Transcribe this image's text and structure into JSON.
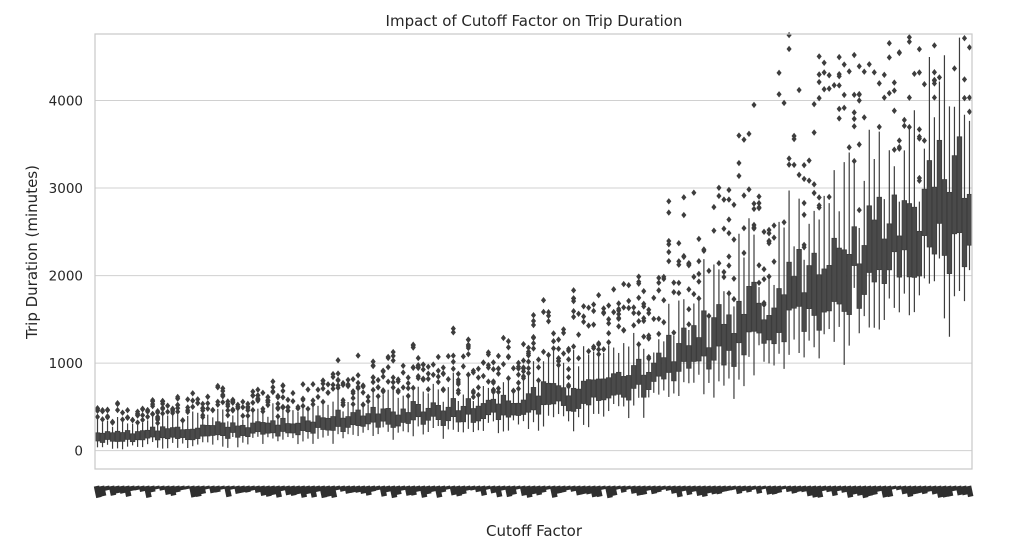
{
  "chart_data": {
    "type": "box",
    "title": "Impact of Cutoff Factor on Trip Duration",
    "xlabel": "Cutoff Factor",
    "ylabel": "Trip Duration (minutes)",
    "ylim": [
      -210,
      4760
    ],
    "yticks": [
      0,
      1000,
      2000,
      3000,
      4000
    ],
    "grid": true,
    "x_tick_labels_legible": false,
    "color": "#4a4a4a",
    "approx_trend": {
      "x_fraction": [
        0.0,
        0.2,
        0.4,
        0.6,
        0.8,
        1.0
      ],
      "median_minutes": [
        150,
        260,
        430,
        700,
        1700,
        2900
      ]
    }
  }
}
